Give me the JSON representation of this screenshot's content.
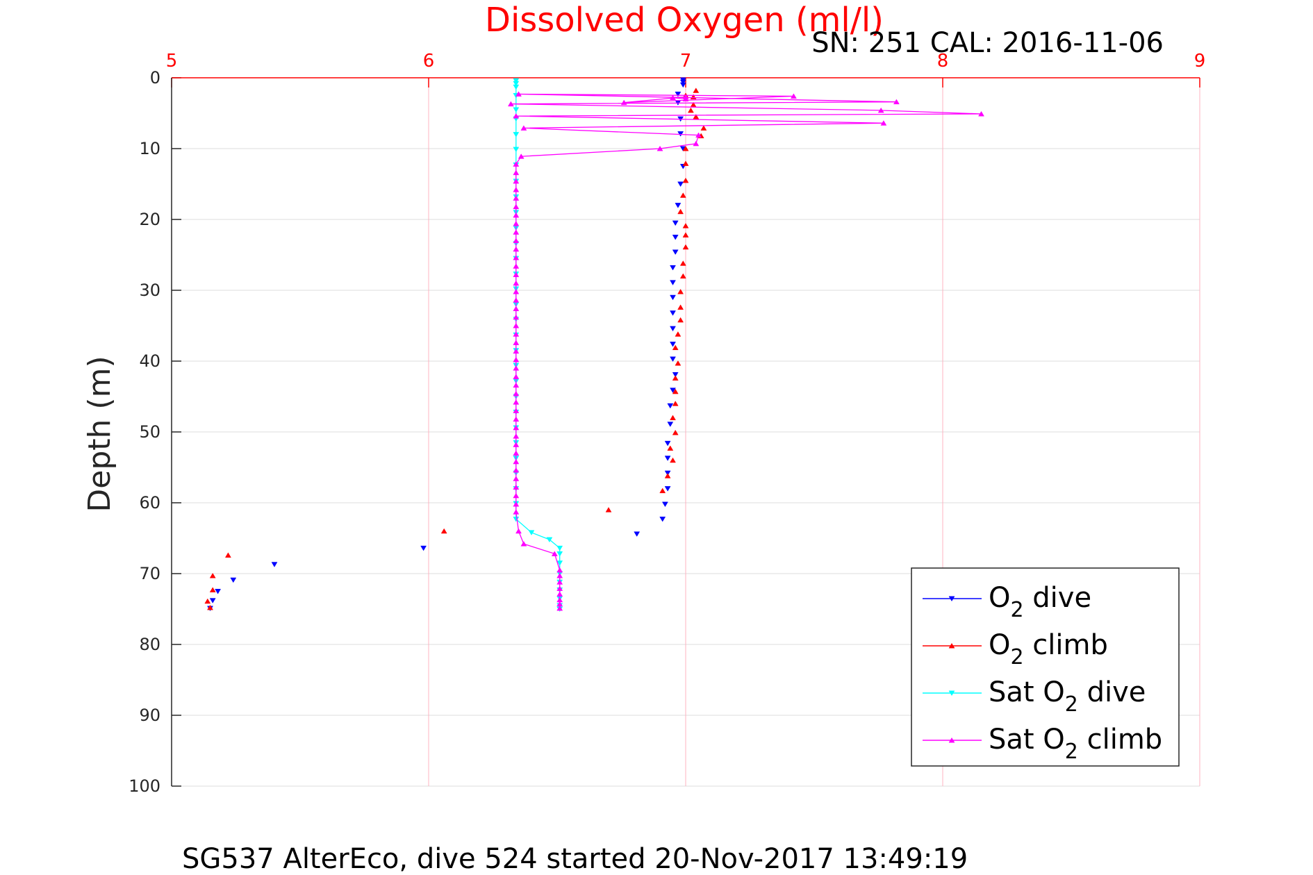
{
  "chart_data": {
    "type": "scatter",
    "title": "Dissolved Oxygen (ml/l)",
    "subtitle": "SN: 251  CAL: 2016-11-06",
    "caption": "SG537 AlterEco, dive 524 started 20-Nov-2017 13:49:19",
    "ylabel": "Depth (m)",
    "xlim": [
      5,
      9
    ],
    "ylim": [
      0,
      100
    ],
    "y_reversed": true,
    "x_axis_position": "top",
    "grid": true,
    "xticks": [
      "5",
      "6",
      "7",
      "8",
      "9"
    ],
    "yticks": [
      "0",
      "10",
      "20",
      "30",
      "40",
      "50",
      "60",
      "70",
      "80",
      "90",
      "100"
    ],
    "legend_position": "bottom-right",
    "colors": {
      "title": "#ff0000",
      "x_axis": "#ff0000",
      "x_grid": "#ffb3c0",
      "y_grid": "#dddddd",
      "o2_dive": "#0000ff",
      "o2_climb": "#ff0000",
      "sat_dive": "#00ffff",
      "sat_climb": "#ff00ff"
    },
    "series": [
      {
        "key": "o2_dive",
        "legend": {
          "pre": "O",
          "sub": "2",
          "post": " dive"
        },
        "marker": "triangle-down",
        "line": false,
        "points": [
          [
            6.99,
            0.3
          ],
          [
            6.99,
            0.6
          ],
          [
            6.99,
            1.0
          ],
          [
            6.97,
            2.3
          ],
          [
            6.97,
            3.5
          ],
          [
            6.98,
            5.8
          ],
          [
            6.98,
            7.9
          ],
          [
            6.99,
            10.0
          ],
          [
            6.99,
            12.5
          ],
          [
            6.98,
            15.0
          ],
          [
            6.97,
            18.0
          ],
          [
            6.96,
            20.5
          ],
          [
            6.96,
            22.5
          ],
          [
            6.96,
            24.6
          ],
          [
            6.95,
            26.8
          ],
          [
            6.95,
            28.9
          ],
          [
            6.95,
            31.0
          ],
          [
            6.95,
            33.2
          ],
          [
            6.95,
            35.4
          ],
          [
            6.95,
            37.6
          ],
          [
            6.95,
            39.7
          ],
          [
            6.96,
            41.9
          ],
          [
            6.95,
            44.1
          ],
          [
            6.94,
            46.3
          ],
          [
            6.94,
            48.9
          ],
          [
            6.93,
            51.6
          ],
          [
            6.93,
            53.7
          ],
          [
            6.93,
            55.8
          ],
          [
            6.93,
            58.0
          ],
          [
            6.92,
            60.2
          ],
          [
            6.91,
            62.3
          ],
          [
            6.81,
            64.4
          ],
          [
            5.98,
            66.4
          ],
          [
            5.4,
            68.7
          ],
          [
            5.24,
            70.9
          ],
          [
            5.18,
            72.5
          ],
          [
            5.16,
            73.8
          ],
          [
            5.15,
            74.9
          ]
        ]
      },
      {
        "key": "o2_climb",
        "legend": {
          "pre": "O",
          "sub": "2",
          "post": " climb"
        },
        "marker": "triangle-up",
        "line": false,
        "points": [
          [
            5.15,
            74.8
          ],
          [
            5.14,
            73.9
          ],
          [
            5.16,
            72.3
          ],
          [
            5.16,
            70.3
          ],
          [
            5.22,
            67.4
          ],
          [
            6.06,
            64.0
          ],
          [
            6.7,
            61.0
          ],
          [
            6.91,
            58.3
          ],
          [
            6.93,
            56.2
          ],
          [
            6.95,
            54.0
          ],
          [
            6.94,
            52.3
          ],
          [
            6.96,
            50.1
          ],
          [
            6.95,
            48.0
          ],
          [
            6.96,
            46.0
          ],
          [
            6.96,
            44.3
          ],
          [
            6.96,
            42.4
          ],
          [
            6.97,
            40.3
          ],
          [
            6.96,
            38.1
          ],
          [
            6.97,
            36.2
          ],
          [
            6.98,
            34.2
          ],
          [
            6.98,
            32.4
          ],
          [
            6.98,
            30.2
          ],
          [
            6.99,
            28.0
          ],
          [
            6.99,
            26.2
          ],
          [
            7.0,
            23.9
          ],
          [
            7.0,
            22.2
          ],
          [
            7.0,
            20.9
          ],
          [
            6.98,
            18.9
          ],
          [
            6.99,
            16.6
          ],
          [
            7.0,
            14.5
          ],
          [
            7.0,
            12.1
          ],
          [
            7.0,
            10.0
          ],
          [
            7.06,
            8.2
          ],
          [
            7.07,
            7.1
          ],
          [
            7.04,
            5.5
          ],
          [
            7.02,
            4.6
          ],
          [
            7.03,
            3.8
          ],
          [
            7.03,
            2.7
          ],
          [
            7.04,
            1.8
          ],
          [
            7.0,
            2.5
          ]
        ]
      },
      {
        "key": "sat_dive",
        "legend": {
          "pre": "Sat O",
          "sub": "2",
          "post": " dive"
        },
        "marker": "triangle-down",
        "line": true,
        "points": [
          [
            6.34,
            0.4
          ],
          [
            6.34,
            0.8
          ],
          [
            6.34,
            1.3
          ],
          [
            6.34,
            2.5
          ],
          [
            6.34,
            4.5
          ],
          [
            6.34,
            5.8
          ],
          [
            6.34,
            8.0
          ],
          [
            6.34,
            10.1
          ],
          [
            6.34,
            12.3
          ],
          [
            6.34,
            14.6
          ],
          [
            6.34,
            16.8
          ],
          [
            6.34,
            19.0
          ],
          [
            6.34,
            21.2
          ],
          [
            6.34,
            23.4
          ],
          [
            6.34,
            25.5
          ],
          [
            6.34,
            27.7
          ],
          [
            6.34,
            29.8
          ],
          [
            6.34,
            32.0
          ],
          [
            6.34,
            34.1
          ],
          [
            6.34,
            36.3
          ],
          [
            6.34,
            38.5
          ],
          [
            6.34,
            40.6
          ],
          [
            6.34,
            42.8
          ],
          [
            6.34,
            45.0
          ],
          [
            6.34,
            47.2
          ],
          [
            6.34,
            49.4
          ],
          [
            6.34,
            51.5
          ],
          [
            6.34,
            53.7
          ],
          [
            6.34,
            55.8
          ],
          [
            6.34,
            58.0
          ],
          [
            6.34,
            60.1
          ],
          [
            6.34,
            62.3
          ],
          [
            6.4,
            64.2
          ],
          [
            6.47,
            65.2
          ],
          [
            6.51,
            66.4
          ],
          [
            6.51,
            67.2
          ],
          [
            6.51,
            68.5
          ],
          [
            6.51,
            70.0
          ],
          [
            6.51,
            71.2
          ],
          [
            6.51,
            72.3
          ],
          [
            6.51,
            73.5
          ],
          [
            6.51,
            74.5
          ],
          [
            6.51,
            75.0
          ]
        ]
      },
      {
        "key": "sat_climb",
        "legend": {
          "pre": "Sat O",
          "sub": "2",
          "post": " climb"
        },
        "marker": "triangle-up",
        "line": true,
        "points": [
          [
            6.51,
            74.9
          ],
          [
            6.51,
            74.3
          ],
          [
            6.51,
            73.7
          ],
          [
            6.51,
            72.9
          ],
          [
            6.51,
            72.1
          ],
          [
            6.51,
            71.2
          ],
          [
            6.51,
            70.3
          ],
          [
            6.51,
            69.5
          ],
          [
            6.49,
            67.2
          ],
          [
            6.37,
            65.8
          ],
          [
            6.35,
            64.0
          ],
          [
            6.34,
            61.3
          ],
          [
            6.34,
            60.2
          ],
          [
            6.34,
            59.0
          ],
          [
            6.34,
            57.8
          ],
          [
            6.34,
            56.6
          ],
          [
            6.34,
            55.4
          ],
          [
            6.34,
            54.2
          ],
          [
            6.34,
            53.0
          ],
          [
            6.34,
            51.8
          ],
          [
            6.34,
            50.6
          ],
          [
            6.34,
            49.4
          ],
          [
            6.34,
            48.2
          ],
          [
            6.34,
            47.0
          ],
          [
            6.34,
            45.8
          ],
          [
            6.34,
            44.6
          ],
          [
            6.34,
            43.4
          ],
          [
            6.34,
            42.2
          ],
          [
            6.34,
            41.0
          ],
          [
            6.34,
            39.8
          ],
          [
            6.34,
            38.6
          ],
          [
            6.34,
            37.4
          ],
          [
            6.34,
            36.2
          ],
          [
            6.34,
            35.0
          ],
          [
            6.34,
            33.8
          ],
          [
            6.34,
            32.6
          ],
          [
            6.34,
            31.4
          ],
          [
            6.34,
            30.2
          ],
          [
            6.34,
            29.0
          ],
          [
            6.34,
            27.8
          ],
          [
            6.34,
            26.6
          ],
          [
            6.34,
            25.4
          ],
          [
            6.34,
            24.2
          ],
          [
            6.34,
            23.0
          ],
          [
            6.34,
            21.8
          ],
          [
            6.34,
            20.6
          ],
          [
            6.34,
            19.4
          ],
          [
            6.34,
            18.2
          ],
          [
            6.34,
            17.0
          ],
          [
            6.34,
            15.8
          ],
          [
            6.34,
            14.6
          ],
          [
            6.34,
            13.4
          ],
          [
            6.34,
            12.2
          ],
          [
            6.36,
            11.1
          ],
          [
            6.9,
            10.0
          ],
          [
            7.04,
            9.3
          ],
          [
            7.05,
            8.1
          ],
          [
            6.37,
            7.1
          ],
          [
            7.77,
            6.4
          ],
          [
            6.34,
            5.4
          ],
          [
            8.15,
            5.1
          ],
          [
            7.76,
            4.6
          ],
          [
            6.32,
            3.7
          ],
          [
            7.82,
            3.4
          ],
          [
            6.35,
            2.3
          ],
          [
            7.42,
            2.6
          ],
          [
            6.76,
            3.5
          ],
          [
            7.0,
            2.7
          ],
          [
            6.95,
            2.8
          ],
          [
            7.0,
            3.0
          ]
        ]
      }
    ]
  }
}
